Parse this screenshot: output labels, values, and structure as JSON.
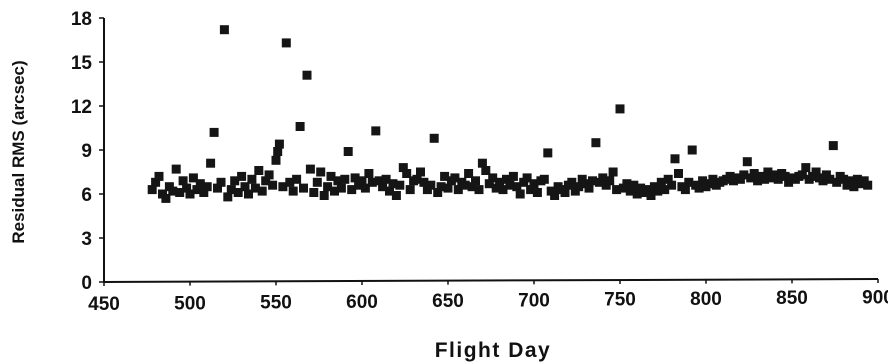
{
  "chart_data": {
    "type": "scatter",
    "title": "",
    "xlabel": "Flight Day",
    "ylabel": "Residual RMS (arcsec)",
    "xlim": [
      450,
      900
    ],
    "ylim": [
      0,
      18
    ],
    "xticks": [
      "450",
      "500",
      "550",
      "600",
      "650",
      "700",
      "750",
      "800",
      "850",
      "900"
    ],
    "yticks": [
      "0",
      "3",
      "6",
      "9",
      "12",
      "15",
      "18"
    ],
    "grid": false,
    "legend": "none",
    "marker_color": "#151515",
    "series": [
      {
        "points": [
          [
            478,
            6.3
          ],
          [
            480,
            6.8
          ],
          [
            482,
            7.2
          ],
          [
            484,
            6.0
          ],
          [
            486,
            5.7
          ],
          [
            488,
            6.5
          ],
          [
            490,
            6.2
          ],
          [
            492,
            7.7
          ],
          [
            494,
            6.1
          ],
          [
            496,
            6.9
          ],
          [
            498,
            6.4
          ],
          [
            500,
            6.0
          ],
          [
            502,
            7.1
          ],
          [
            504,
            6.3
          ],
          [
            506,
            6.7
          ],
          [
            508,
            6.1
          ],
          [
            510,
            6.5
          ],
          [
            512,
            8.1
          ],
          [
            514,
            10.2
          ],
          [
            516,
            6.4
          ],
          [
            518,
            6.8
          ],
          [
            520,
            17.2
          ],
          [
            522,
            5.8
          ],
          [
            524,
            6.3
          ],
          [
            526,
            6.9
          ],
          [
            528,
            6.1
          ],
          [
            530,
            7.2
          ],
          [
            532,
            6.5
          ],
          [
            534,
            6.0
          ],
          [
            536,
            7.0
          ],
          [
            538,
            6.4
          ],
          [
            540,
            7.6
          ],
          [
            542,
            6.2
          ],
          [
            544,
            6.9
          ],
          [
            546,
            7.3
          ],
          [
            548,
            6.6
          ],
          [
            550,
            8.3
          ],
          [
            551,
            8.9
          ],
          [
            552,
            9.4
          ],
          [
            554,
            6.5
          ],
          [
            556,
            16.3
          ],
          [
            558,
            6.8
          ],
          [
            560,
            6.2
          ],
          [
            562,
            7.0
          ],
          [
            564,
            10.6
          ],
          [
            566,
            6.4
          ],
          [
            568,
            14.1
          ],
          [
            570,
            7.7
          ],
          [
            572,
            6.1
          ],
          [
            574,
            6.8
          ],
          [
            576,
            7.5
          ],
          [
            578,
            5.9
          ],
          [
            580,
            6.5
          ],
          [
            582,
            7.2
          ],
          [
            584,
            6.2
          ],
          [
            586,
            6.9
          ],
          [
            588,
            6.4
          ],
          [
            590,
            7.0
          ],
          [
            592,
            8.9
          ],
          [
            594,
            6.3
          ],
          [
            596,
            7.1
          ],
          [
            598,
            6.6
          ],
          [
            600,
            6.9
          ],
          [
            602,
            6.4
          ],
          [
            604,
            7.4
          ],
          [
            606,
            6.8
          ],
          [
            608,
            10.3
          ],
          [
            610,
            6.9
          ],
          [
            612,
            6.5
          ],
          [
            614,
            7.0
          ],
          [
            616,
            6.2
          ],
          [
            618,
            6.7
          ],
          [
            620,
            5.9
          ],
          [
            622,
            6.6
          ],
          [
            624,
            7.8
          ],
          [
            626,
            7.4
          ],
          [
            628,
            6.3
          ],
          [
            630,
            6.9
          ],
          [
            632,
            7.0
          ],
          [
            634,
            7.5
          ],
          [
            636,
            6.8
          ],
          [
            638,
            6.3
          ],
          [
            640,
            6.6
          ],
          [
            642,
            9.8
          ],
          [
            644,
            6.1
          ],
          [
            646,
            6.5
          ],
          [
            648,
            7.2
          ],
          [
            650,
            6.4
          ],
          [
            652,
            6.9
          ],
          [
            654,
            7.1
          ],
          [
            656,
            6.3
          ],
          [
            658,
            6.8
          ],
          [
            660,
            6.6
          ],
          [
            662,
            7.4
          ],
          [
            664,
            6.5
          ],
          [
            666,
            6.9
          ],
          [
            668,
            6.3
          ],
          [
            670,
            8.1
          ],
          [
            672,
            7.6
          ],
          [
            674,
            6.7
          ],
          [
            676,
            7.1
          ],
          [
            678,
            6.4
          ],
          [
            680,
            6.8
          ],
          [
            682,
            6.3
          ],
          [
            684,
            7.0
          ],
          [
            686,
            6.6
          ],
          [
            688,
            7.2
          ],
          [
            690,
            6.5
          ],
          [
            692,
            6.0
          ],
          [
            694,
            6.8
          ],
          [
            696,
            7.1
          ],
          [
            698,
            6.3
          ],
          [
            700,
            6.7
          ],
          [
            702,
            6.1
          ],
          [
            704,
            6.9
          ],
          [
            706,
            7.0
          ],
          [
            708,
            8.8
          ],
          [
            710,
            6.2
          ],
          [
            712,
            5.9
          ],
          [
            714,
            6.5
          ],
          [
            716,
            6.3
          ],
          [
            718,
            6.1
          ],
          [
            720,
            6.6
          ],
          [
            722,
            6.8
          ],
          [
            724,
            6.2
          ],
          [
            726,
            6.5
          ],
          [
            728,
            7.0
          ],
          [
            730,
            6.7
          ],
          [
            732,
            6.4
          ],
          [
            734,
            6.9
          ],
          [
            736,
            9.5
          ],
          [
            738,
            6.8
          ],
          [
            740,
            7.1
          ],
          [
            742,
            6.6
          ],
          [
            744,
            6.9
          ],
          [
            746,
            7.5
          ],
          [
            748,
            6.3
          ],
          [
            750,
            11.8
          ],
          [
            752,
            6.4
          ],
          [
            754,
            6.7
          ],
          [
            756,
            6.2
          ],
          [
            758,
            6.6
          ],
          [
            760,
            6.0
          ],
          [
            762,
            6.4
          ],
          [
            764,
            6.1
          ],
          [
            766,
            6.3
          ],
          [
            768,
            5.9
          ],
          [
            770,
            6.5
          ],
          [
            772,
            6.2
          ],
          [
            774,
            6.8
          ],
          [
            776,
            6.3
          ],
          [
            778,
            7.0
          ],
          [
            780,
            6.6
          ],
          [
            782,
            8.4
          ],
          [
            784,
            7.4
          ],
          [
            786,
            6.5
          ],
          [
            788,
            6.3
          ],
          [
            790,
            6.8
          ],
          [
            792,
            9.0
          ],
          [
            794,
            6.6
          ],
          [
            796,
            6.4
          ],
          [
            798,
            6.9
          ],
          [
            800,
            6.5
          ],
          [
            802,
            6.7
          ],
          [
            804,
            7.0
          ],
          [
            806,
            6.6
          ],
          [
            808,
            6.8
          ],
          [
            810,
            6.9
          ],
          [
            812,
            7.0
          ],
          [
            814,
            7.2
          ],
          [
            816,
            6.9
          ],
          [
            818,
            7.1
          ],
          [
            820,
            7.0
          ],
          [
            822,
            7.3
          ],
          [
            824,
            8.2
          ],
          [
            826,
            7.1
          ],
          [
            828,
            7.4
          ],
          [
            830,
            6.9
          ],
          [
            832,
            7.2
          ],
          [
            834,
            7.0
          ],
          [
            836,
            7.5
          ],
          [
            838,
            7.1
          ],
          [
            840,
            7.3
          ],
          [
            842,
            7.0
          ],
          [
            844,
            7.4
          ],
          [
            846,
            7.2
          ],
          [
            848,
            6.8
          ],
          [
            850,
            7.1
          ],
          [
            852,
            7.0
          ],
          [
            854,
            7.2
          ],
          [
            856,
            7.3
          ],
          [
            858,
            7.8
          ],
          [
            860,
            7.0
          ],
          [
            862,
            7.2
          ],
          [
            864,
            7.5
          ],
          [
            866,
            7.1
          ],
          [
            868,
            6.9
          ],
          [
            870,
            7.3
          ],
          [
            872,
            7.0
          ],
          [
            874,
            9.3
          ],
          [
            876,
            6.8
          ],
          [
            878,
            7.2
          ],
          [
            880,
            7.0
          ],
          [
            882,
            6.6
          ],
          [
            884,
            6.9
          ],
          [
            886,
            6.5
          ],
          [
            888,
            7.0
          ],
          [
            890,
            6.7
          ],
          [
            892,
            6.9
          ],
          [
            894,
            6.6
          ]
        ]
      }
    ]
  }
}
